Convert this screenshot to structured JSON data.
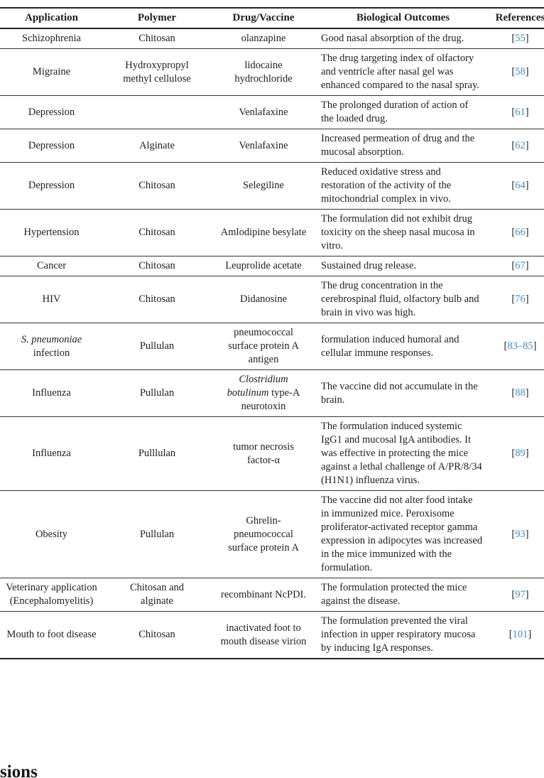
{
  "table": {
    "headers": [
      "Application",
      "Polymer",
      "Drug/Vaccine",
      "Biological Outcomes",
      "References"
    ],
    "rows": [
      {
        "application": "Schizophrenia",
        "polymer": "Chitosan",
        "drug": "olanzapine",
        "outcome": "Good nasal absorption of the drug.",
        "ref": "55"
      },
      {
        "application": "Migraine",
        "polymer": "Hydroxypropyl methyl cellulose",
        "drug": "lidocaine hydrochloride",
        "outcome": "The drug targeting index of olfactory and ventricle after nasal gel was enhanced compared to the nasal spray.",
        "ref": "58"
      },
      {
        "application": "Depression",
        "polymer": "",
        "drug": "Venlafaxine",
        "outcome": "The prolonged duration of action of the loaded drug.",
        "ref": "61"
      },
      {
        "application": "Depression",
        "polymer": "Alginate",
        "drug": "Venlafaxine",
        "outcome": "Increased permeation of drug and the mucosal absorption.",
        "ref": "62"
      },
      {
        "application": "Depression",
        "polymer": "Chitosan",
        "drug": "Selegiline",
        "outcome": "Reduced oxidative stress and restoration of the activity of the mitochondrial complex in vivo.",
        "ref": "64"
      },
      {
        "application": "Hypertension",
        "polymer": "Chitosan",
        "drug": "Amlodipine besylate",
        "outcome": "The formulation did not exhibit drug toxicity on the sheep nasal mucosa in vitro.",
        "ref": "66"
      },
      {
        "application": "Cancer",
        "polymer": "Chitosan",
        "drug": "Leuprolide acetate",
        "outcome": "Sustained drug release.",
        "ref": "67"
      },
      {
        "application": "HIV",
        "polymer": "Chitosan",
        "drug": "Didanosine",
        "outcome": "The drug concentration in the cerebrospinal fluid, olfactory bulb and brain in vivo was high.",
        "ref": "76"
      },
      {
        "application": [
          {
            "text": "S. pneumoniae",
            "italic": true
          },
          {
            "text": " infection"
          }
        ],
        "polymer": "Pullulan",
        "drug": "pneumococcal surface protein A antigen",
        "outcome": "formulation induced humoral and cellular immune responses.",
        "ref": "83–85"
      },
      {
        "application": "Influenza",
        "polymer": "Pullulan",
        "drug": [
          {
            "text": "Clostridium botulinum",
            "italic": true
          },
          {
            "text": " type-A neurotoxin"
          }
        ],
        "outcome": "The vaccine did not accumulate in the brain.",
        "ref": "88"
      },
      {
        "application": "Influenza",
        "polymer": "Pulllulan",
        "drug": "tumor necrosis factor-α",
        "outcome": "The formulation induced systemic IgG1 and mucosal IgA antibodies. It was effective in protecting the mice against a lethal challenge of A/PR/8/34 (H1N1) influenza virus.",
        "ref": "89"
      },
      {
        "application": "Obesity",
        "polymer": "Pullulan",
        "drug": "Ghrelin-pneumococcal surface protein A",
        "outcome": "The vaccine did not alter food intake in immunized mice. Peroxisome proliferator-activated receptor gamma expression in adipocytes was increased in the mice immunized with the formulation.",
        "ref": "93"
      },
      {
        "application": "Veterinary application (Encephalomyelitis)",
        "polymer": "Chitosan and alginate",
        "drug": "recombinant NcPDI.",
        "outcome": "The formulation protected the mice against the disease.",
        "ref": "97"
      },
      {
        "application": "Mouth to foot disease",
        "polymer": "Chitosan",
        "drug": "inactivated foot to mouth disease virion",
        "outcome": "The formulation prevented the viral infection in upper respiratory mucosa by inducing IgA responses.",
        "ref": "101"
      }
    ]
  },
  "footer": {
    "partial_heading": "sions"
  },
  "colors": {
    "reference_link": "#3E8FBD",
    "text": "#1e1e1e",
    "rule": "#222222"
  }
}
